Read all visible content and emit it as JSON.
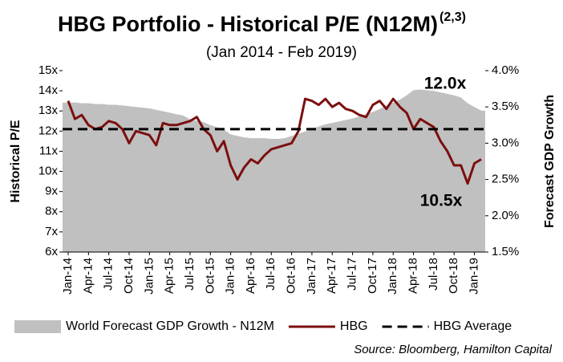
{
  "chart_data": {
    "type": "combo",
    "title": "HBG Portfolio - Historical P/E (N12M)",
    "title_superscript": "(2,3)",
    "subtitle": "(Jan 2014 - Feb 2019)",
    "y_label": "Historical P/E",
    "y2_label": "Forecast GDP Growth",
    "source": "Source: Bloomberg, Hamilton Capital",
    "categories": [
      "Jan-14",
      null,
      null,
      "Apr-14",
      null,
      null,
      "Jul-14",
      null,
      null,
      "Oct-14",
      null,
      null,
      "Jan-15",
      null,
      null,
      "Apr-15",
      null,
      null,
      "Jul-15",
      null,
      null,
      "Oct-15",
      null,
      null,
      "Jan-16",
      null,
      null,
      "Apr-16",
      null,
      null,
      "Jul-16",
      null,
      null,
      "Oct-16",
      null,
      null,
      "Jan-17",
      null,
      null,
      "Apr-17",
      null,
      null,
      "Jul-17",
      null,
      null,
      "Oct-17",
      null,
      null,
      "Jan-18",
      null,
      null,
      "Apr-18",
      null,
      null,
      "Jul-18",
      null,
      null,
      "Oct-18",
      null,
      null,
      "Jan-19",
      null
    ],
    "series": [
      {
        "name": "World Forecast GDP Growth - N12M",
        "kind": "area",
        "axis": "y2",
        "color": "#c0c0c0",
        "values": [
          3.56,
          3.56,
          3.55,
          3.55,
          3.54,
          3.54,
          3.53,
          3.53,
          3.52,
          3.51,
          3.5,
          3.49,
          3.48,
          3.46,
          3.44,
          3.42,
          3.4,
          3.38,
          3.33,
          3.31,
          3.29,
          3.25,
          3.22,
          3.19,
          3.12,
          3.1,
          3.08,
          3.07,
          3.07,
          3.07,
          3.06,
          3.06,
          3.07,
          3.1,
          3.13,
          3.16,
          3.2,
          3.23,
          3.26,
          3.28,
          3.3,
          3.32,
          3.34,
          3.37,
          3.4,
          3.43,
          3.47,
          3.52,
          3.56,
          3.6,
          3.66,
          3.73,
          3.74,
          3.73,
          3.72,
          3.7,
          3.68,
          3.66,
          3.63,
          3.55,
          3.5,
          3.45
        ]
      },
      {
        "name": "HBG",
        "kind": "line",
        "axis": "y",
        "color": "#7b0f0f",
        "values": [
          13.5,
          12.6,
          12.8,
          12.3,
          12.1,
          12.2,
          12.5,
          12.4,
          12.1,
          11.4,
          12.0,
          11.9,
          11.8,
          11.3,
          12.4,
          12.3,
          12.3,
          12.4,
          12.5,
          12.7,
          12.1,
          11.8,
          11.0,
          11.5,
          10.3,
          9.6,
          10.2,
          10.6,
          10.4,
          10.8,
          11.1,
          11.2,
          11.3,
          11.4,
          12.0,
          13.6,
          13.5,
          13.3,
          13.6,
          13.2,
          13.4,
          13.1,
          13.0,
          12.8,
          12.7,
          13.3,
          13.5,
          13.1,
          13.6,
          13.2,
          12.9,
          12.1,
          12.6,
          12.4,
          12.2,
          11.5,
          11.0,
          10.3,
          10.3,
          9.4,
          10.4,
          10.6
        ]
      }
    ],
    "reference_lines": [
      {
        "name": "HBG Average",
        "value": 12.1,
        "color": "#000000",
        "dashed": true
      }
    ],
    "annotations": [
      {
        "text": "12.0x"
      },
      {
        "text": "10.5x"
      }
    ],
    "ylim": [
      6,
      15
    ],
    "yticks": [
      {
        "value": 6,
        "label": "6x"
      },
      {
        "value": 7,
        "label": "7x"
      },
      {
        "value": 8,
        "label": "8x"
      },
      {
        "value": 9,
        "label": "9x"
      },
      {
        "value": 10,
        "label": "10x"
      },
      {
        "value": 11,
        "label": "11x"
      },
      {
        "value": 12,
        "label": "12x"
      },
      {
        "value": 13,
        "label": "13x"
      },
      {
        "value": 14,
        "label": "14x"
      },
      {
        "value": 15,
        "label": "15x"
      }
    ],
    "y2lim": [
      1.5,
      4.0
    ],
    "y2ticks": [
      {
        "value": 1.5,
        "label": "1.5%"
      },
      {
        "value": 2.0,
        "label": "2.0%"
      },
      {
        "value": 2.5,
        "label": "2.5%"
      },
      {
        "value": 3.0,
        "label": "3.0%"
      },
      {
        "value": 3.5,
        "label": "3.5%"
      },
      {
        "value": 4.0,
        "label": "4.0%"
      }
    ],
    "legend": "bottom",
    "grid": false
  }
}
